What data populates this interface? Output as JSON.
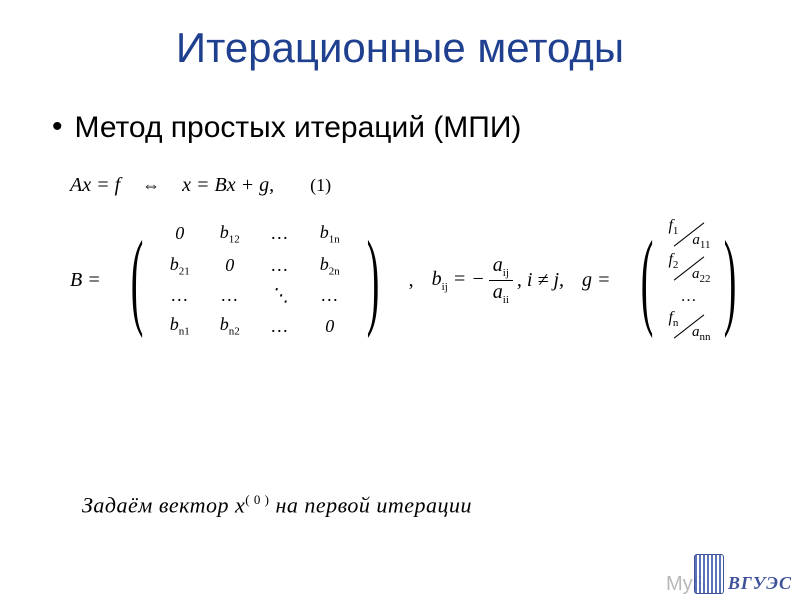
{
  "title": {
    "text": "Итерационные методы",
    "color": "#1f3f8f",
    "fontsize": 42
  },
  "bullet": {
    "marker": "•",
    "text": "Метод простых итераций (МПИ)"
  },
  "eq1": {
    "lhs": "Ax = f",
    "arrow": "⇔",
    "rhs": "x = Bx + g,",
    "num": "(1)"
  },
  "matrixB": {
    "label": "B =",
    "rows": [
      [
        "0",
        "b<sub>12</sub>",
        "…",
        "b<sub>1n</sub>"
      ],
      [
        "b<sub>21</sub>",
        "0",
        "…",
        "b<sub>2n</sub>"
      ],
      [
        "…",
        "…",
        "⋱",
        "…"
      ],
      [
        "b<sub>n1</sub>",
        "b<sub>n2</sub>",
        "…",
        "0"
      ]
    ],
    "trailing_comma": ","
  },
  "bij": {
    "prefix": "b<sub>ij</sub> = −",
    "num": "a<sub>ij</sub>",
    "den": "a<sub>ii</sub>",
    "cond": ",   i ≠ j,"
  },
  "gvec": {
    "label": "g =",
    "entries": [
      {
        "top": "f<sub>1</sub>",
        "bot": "a<sub>11</sub>"
      },
      {
        "top": "f<sub>2</sub>",
        "bot": "a<sub>22</sub>"
      },
      {
        "dots": "…"
      },
      {
        "top": "f<sub>n</sub>",
        "bot": "a<sub>nn</sub>"
      }
    ]
  },
  "footer": {
    "pre": "Задаём вектор ",
    "x": "x",
    "sup": "( 0 )",
    "post": " на первой итерации"
  },
  "watermark": {
    "side": "MyS",
    "text": "ВГУЭС"
  },
  "colors": {
    "title": "#1f3f8f",
    "text": "#000000",
    "watermark": "#2a3f8f",
    "side": "#b8b8b8",
    "bg": "#ffffff"
  }
}
